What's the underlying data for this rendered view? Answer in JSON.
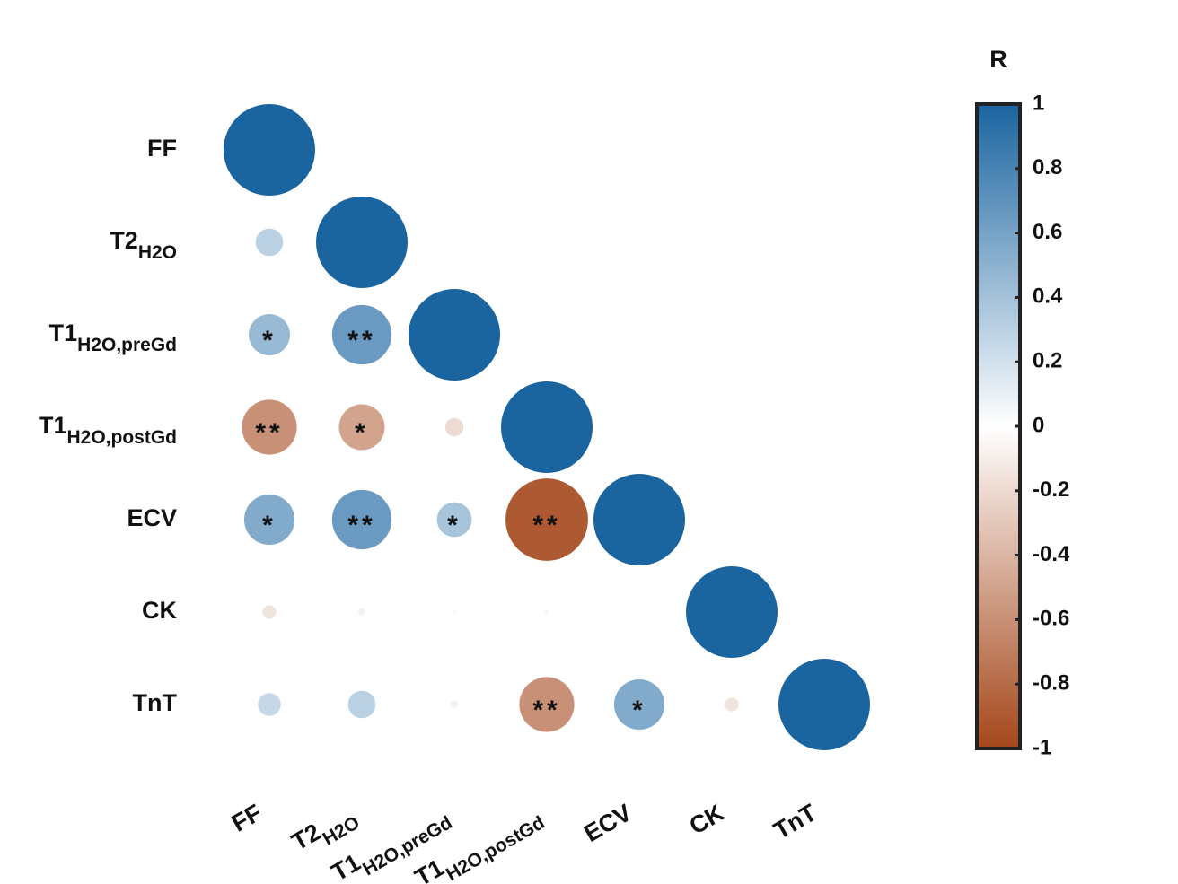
{
  "chart_data": {
    "type": "corrplot",
    "labels": [
      {
        "text": "FF"
      },
      {
        "text": "T2",
        "sub": "H2O"
      },
      {
        "text": "T1",
        "sub": "H2O,preGd"
      },
      {
        "text": "T1",
        "sub": "H2O,postGd"
      },
      {
        "text": "ECV"
      },
      {
        "text": "CK"
      },
      {
        "text": "TnT"
      }
    ],
    "values": [
      [
        1
      ],
      [
        0.3,
        1
      ],
      [
        0.45,
        0.65,
        1
      ],
      [
        -0.6,
        -0.5,
        -0.2,
        1
      ],
      [
        0.55,
        0.65,
        0.38,
        -0.9,
        1
      ],
      [
        -0.15,
        0.08,
        -0.05,
        0.05,
        0.03,
        1
      ],
      [
        0.25,
        0.3,
        0.08,
        -0.6,
        0.55,
        -0.15,
        1
      ]
    ],
    "significance": [
      [
        null
      ],
      [
        null,
        null
      ],
      [
        "*",
        "**",
        null
      ],
      [
        "**",
        "*",
        null,
        null
      ],
      [
        "*",
        "**",
        "*",
        "**",
        null
      ],
      [
        null,
        null,
        null,
        null,
        null,
        null
      ],
      [
        null,
        null,
        null,
        "**",
        "*",
        null,
        null
      ]
    ],
    "colormap": [
      "#a4461a",
      "#ffffff",
      "#1a64a0"
    ],
    "colorbar": {
      "title": "R",
      "lim": [
        -1,
        1
      ],
      "ticks": [
        1,
        0.8,
        0.6,
        0.4,
        0.2,
        0,
        -0.2,
        -0.4,
        -0.6,
        -0.8,
        -1
      ]
    }
  }
}
